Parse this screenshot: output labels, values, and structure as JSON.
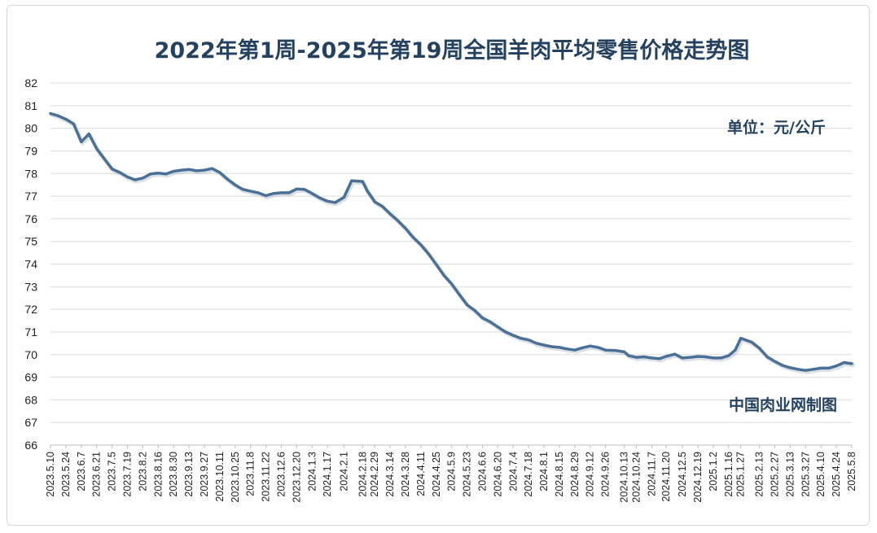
{
  "chart_data": {
    "type": "line",
    "title": "2022年第1周-2025年第19周全国羊肉平均零售价格走势图",
    "unit_label": "单位：元/公斤",
    "source_label": "中国肉业网制图",
    "ylim": [
      66,
      82
    ],
    "yticks": [
      66,
      67,
      68,
      69,
      70,
      71,
      72,
      73,
      74,
      75,
      76,
      77,
      78,
      79,
      80,
      81,
      82
    ],
    "grid": true,
    "legend": "none",
    "x_tick_labels": [
      "2023.5.10",
      "2023.5.24",
      "2023.6.7",
      "2023.6.21",
      "2023.7.5",
      "2023.7.19",
      "2023.8.2",
      "2023.8.16",
      "2023.8.30",
      "2023.9.13",
      "2023.9.27",
      "2023.10.11",
      "2023.10.25",
      "2023.11.8",
      "2023.11.22",
      "2023.12.6",
      "2023.12.20",
      "2024.1.3",
      "2024.1.17",
      "2024.2.1",
      "2024.2.18",
      "2024.2.29",
      "2024.3.14",
      "2024.3.28",
      "2024.4.11",
      "2024.4.25",
      "2024.5.9",
      "2024.5.23",
      "2024.6.6",
      "2024.6.20",
      "2024.7.4",
      "2024.7.18",
      "2024.8.1",
      "2024.8.15",
      "2024.8.29",
      "2024.9.12",
      "2024.9.26",
      "2024.10.13",
      "2024.10.24",
      "2024.11.7",
      "2024.11.20",
      "2024.12.5",
      "2024.12.19",
      "2025.1.2",
      "2025.1.16",
      "2025.1.27",
      "2025.2.13",
      "2025.2.27",
      "2025.3.13",
      "2025.3.27",
      "2025.4.10",
      "2025.4.24",
      "2025.5.8"
    ],
    "series": [
      {
        "color": "#4a7098",
        "x": [
          "2023.5.10",
          "2023.5.17",
          "2023.5.24",
          "2023.5.31",
          "2023.6.7",
          "2023.6.14",
          "2023.6.21",
          "2023.6.28",
          "2023.7.5",
          "2023.7.12",
          "2023.7.19",
          "2023.7.26",
          "2023.8.2",
          "2023.8.9",
          "2023.8.16",
          "2023.8.23",
          "2023.8.30",
          "2023.9.6",
          "2023.9.13",
          "2023.9.20",
          "2023.9.27",
          "2023.10.4",
          "2023.10.11",
          "2023.10.18",
          "2023.10.25",
          "2023.11.1",
          "2023.11.8",
          "2023.11.15",
          "2023.11.22",
          "2023.11.29",
          "2023.12.6",
          "2023.12.13",
          "2023.12.20",
          "2023.12.27",
          "2024.1.3",
          "2024.1.10",
          "2024.1.17",
          "2024.1.24",
          "2024.2.1",
          "2024.2.8",
          "2024.2.18",
          "2024.2.22",
          "2024.2.29",
          "2024.3.7",
          "2024.3.14",
          "2024.3.21",
          "2024.3.28",
          "2024.4.4",
          "2024.4.11",
          "2024.4.18",
          "2024.4.25",
          "2024.5.2",
          "2024.5.9",
          "2024.5.16",
          "2024.5.23",
          "2024.5.30",
          "2024.6.6",
          "2024.6.13",
          "2024.6.20",
          "2024.6.27",
          "2024.7.4",
          "2024.7.11",
          "2024.7.18",
          "2024.7.25",
          "2024.8.1",
          "2024.8.8",
          "2024.8.15",
          "2024.8.22",
          "2024.8.29",
          "2024.9.5",
          "2024.9.12",
          "2024.9.19",
          "2024.9.26",
          "2024.10.5",
          "2024.10.13",
          "2024.10.17",
          "2024.10.24",
          "2024.10.31",
          "2024.11.7",
          "2024.11.14",
          "2024.11.20",
          "2024.11.28",
          "2024.12.5",
          "2024.12.12",
          "2024.12.19",
          "2024.12.26",
          "2025.1.2",
          "2025.1.9",
          "2025.1.16",
          "2025.1.22",
          "2025.1.27",
          "2025.2.6",
          "2025.2.13",
          "2025.2.20",
          "2025.2.27",
          "2025.3.6",
          "2025.3.13",
          "2025.3.20",
          "2025.3.27",
          "2025.4.3",
          "2025.4.10",
          "2025.4.17",
          "2025.4.24",
          "2025.5.1",
          "2025.5.8"
        ],
        "values": [
          80.65,
          80.55,
          80.4,
          80.2,
          79.4,
          79.75,
          79.1,
          78.65,
          78.2,
          78.05,
          77.85,
          77.72,
          77.8,
          77.98,
          78.02,
          77.98,
          78.1,
          78.15,
          78.18,
          78.12,
          78.15,
          78.22,
          78.05,
          77.75,
          77.5,
          77.3,
          77.22,
          77.15,
          77.02,
          77.12,
          77.15,
          77.15,
          77.32,
          77.3,
          77.12,
          76.92,
          76.78,
          76.72,
          76.95,
          77.68,
          77.65,
          77.25,
          76.75,
          76.55,
          76.22,
          75.92,
          75.58,
          75.18,
          74.85,
          74.45,
          73.98,
          73.5,
          73.12,
          72.65,
          72.2,
          71.95,
          71.62,
          71.45,
          71.22,
          71.0,
          70.85,
          70.72,
          70.65,
          70.5,
          70.42,
          70.35,
          70.32,
          70.25,
          70.2,
          70.3,
          70.38,
          70.32,
          70.2,
          70.18,
          70.12,
          69.95,
          69.88,
          69.9,
          69.85,
          69.82,
          69.92,
          70.02,
          69.85,
          69.88,
          69.92,
          69.9,
          69.85,
          69.85,
          69.95,
          70.2,
          70.72,
          70.55,
          70.28,
          69.9,
          69.7,
          69.52,
          69.42,
          69.35,
          69.3,
          69.35,
          69.4,
          69.4,
          69.5,
          69.65,
          69.6
        ]
      }
    ]
  }
}
